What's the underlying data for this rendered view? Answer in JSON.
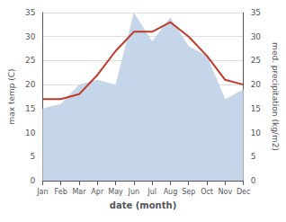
{
  "chart_data": {
    "type": "line",
    "xlabel": "date (month)",
    "ylabel": "max temp (C)",
    "y2label": "med. precipitation (kg/m2)",
    "categories": [
      "Jan",
      "Feb",
      "Mar",
      "Apr",
      "May",
      "Jun",
      "Jul",
      "Aug",
      "Sep",
      "Oct",
      "Nov",
      "Dec"
    ],
    "series": [
      {
        "type": "area",
        "axis": "y2",
        "color": "#c5d5ea",
        "values": [
          15,
          16,
          20,
          21,
          20,
          35,
          29,
          34,
          28,
          26,
          17,
          19
        ]
      },
      {
        "type": "line",
        "color": "#c0392b",
        "values": [
          17,
          17,
          18,
          22,
          27,
          31,
          31,
          33,
          30,
          26,
          21,
          20
        ]
      }
    ],
    "ylim": [
      0,
      35
    ],
    "yticks": [
      0,
      5,
      10,
      15,
      20,
      25,
      30,
      35
    ],
    "y2lim": [
      0,
      35
    ],
    "y2ticks": [
      0,
      5,
      10,
      15,
      20,
      25,
      30,
      35
    ],
    "grid": true
  }
}
